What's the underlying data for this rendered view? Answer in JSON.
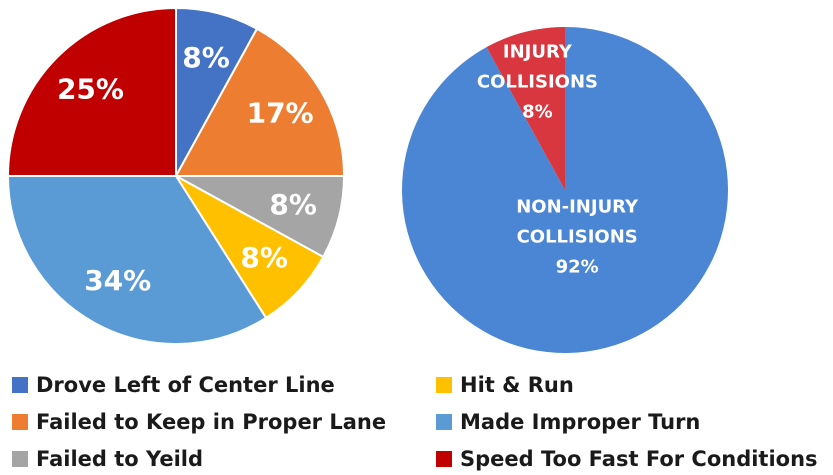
{
  "chart_data": [
    {
      "type": "pie",
      "categories": [
        "Drove Left of Center Line",
        "Failed to Keep in Proper Lane",
        "Failed to Yeild",
        "Hit & Run",
        "Made Improper Turn",
        "Speed Too Fast For Conditions"
      ],
      "values": [
        8,
        17,
        8,
        8,
        34,
        25
      ],
      "value_labels": [
        "8%",
        "17%",
        "8%",
        "8%",
        "34%",
        "25%"
      ],
      "colors": [
        "#4472c4",
        "#ed7d31",
        "#a5a5a5",
        "#ffc000",
        "#5b9bd5",
        "#c00000"
      ],
      "legend": "bottom"
    },
    {
      "type": "pie",
      "categories": [
        "NON-INJURY COLLISIONS",
        "INJURY COLLISIONS"
      ],
      "values": [
        92,
        8
      ],
      "value_labels": [
        "92%",
        "8%"
      ],
      "colors": [
        "#4a86d4",
        "#d9373f"
      ]
    }
  ]
}
